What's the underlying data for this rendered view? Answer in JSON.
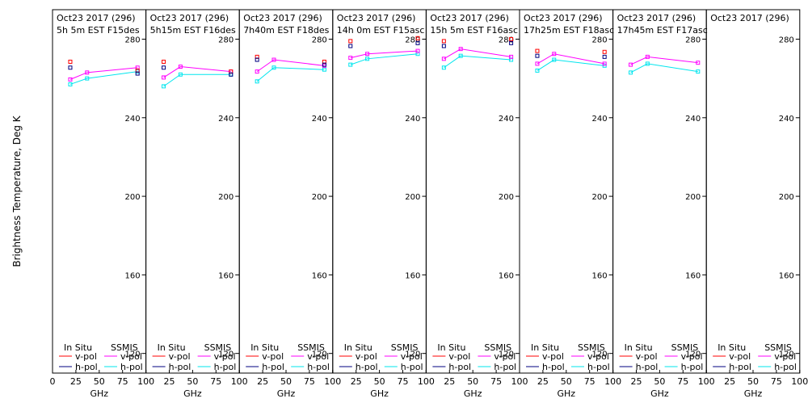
{
  "chart_data": {
    "type": "line",
    "ylabel": "Brightness Temperature, Deg K",
    "xlabel": "GHz",
    "xlim": [
      0,
      100
    ],
    "ylim": [
      110,
      295
    ],
    "x_ticks": [
      0,
      25,
      50,
      75,
      100
    ],
    "y_ticks": [
      120,
      160,
      200,
      240,
      280
    ],
    "legend": {
      "in_situ_title": "In Situ",
      "ssmis_title": "SSMIS",
      "vpol_label": "v-pol",
      "hpol_label": "h-pol",
      "in_situ_vpol_color": "#ff0000",
      "in_situ_hpol_color": "#000080",
      "ssmis_vpol_color": "#ff00ff",
      "ssmis_hpol_color": "#00e5ee"
    },
    "panels": [
      {
        "title1": "Oct23 2017 (296)",
        "title2": "5h 5m EST F15des",
        "ssmis_v": {
          "x": [
            19,
            37,
            91
          ],
          "y": [
            259.5,
            263,
            265.5
          ]
        },
        "ssmis_h": {
          "x": [
            19,
            37,
            91
          ],
          "y": [
            257,
            260,
            263.5
          ]
        },
        "insitu_v": {
          "x": [
            19,
            91
          ],
          "y": [
            268.5,
            264
          ]
        },
        "insitu_h": {
          "x": [
            19,
            91
          ],
          "y": [
            265.5,
            262.5
          ]
        }
      },
      {
        "title1": "Oct23 2017 (296)",
        "title2": "5h15m EST F16des",
        "ssmis_v": {
          "x": [
            19,
            37,
            91
          ],
          "y": [
            260.5,
            266,
            263.5
          ]
        },
        "ssmis_h": {
          "x": [
            19,
            37,
            91
          ],
          "y": [
            256,
            262,
            262
          ]
        },
        "insitu_v": {
          "x": [
            19,
            91
          ],
          "y": [
            268.5,
            263.5
          ]
        },
        "insitu_h": {
          "x": [
            19,
            91
          ],
          "y": [
            265.5,
            262
          ]
        }
      },
      {
        "title1": "Oct23 2017 (296)",
        "title2": "7h40m EST F18des",
        "ssmis_v": {
          "x": [
            19,
            37,
            91
          ],
          "y": [
            263.5,
            269.5,
            266.5
          ]
        },
        "ssmis_h": {
          "x": [
            19,
            37,
            91
          ],
          "y": [
            258.5,
            265.5,
            264.5
          ]
        },
        "insitu_v": {
          "x": [
            19,
            91
          ],
          "y": [
            271,
            268.5
          ]
        },
        "insitu_h": {
          "x": [
            19,
            91
          ],
          "y": [
            269.5,
            267
          ]
        }
      },
      {
        "title1": "Oct23 2017 (296)",
        "title2": "14h 0m EST F15asc",
        "ssmis_v": {
          "x": [
            19,
            37,
            91
          ],
          "y": [
            270.5,
            272.5,
            274
          ]
        },
        "ssmis_h": {
          "x": [
            19,
            37,
            91
          ],
          "y": [
            267,
            270,
            272.5
          ]
        },
        "insitu_v": {
          "x": [
            19,
            91
          ],
          "y": [
            279,
            280.5
          ]
        },
        "insitu_h": {
          "x": [
            19,
            91
          ],
          "y": [
            276.5,
            278
          ]
        }
      },
      {
        "title1": "Oct23 2017 (296)",
        "title2": "15h 5m EST F16asc",
        "ssmis_v": {
          "x": [
            19,
            37,
            91
          ],
          "y": [
            270,
            275,
            271
          ]
        },
        "ssmis_h": {
          "x": [
            19,
            37,
            91
          ],
          "y": [
            265.5,
            271.5,
            269.5
          ]
        },
        "insitu_v": {
          "x": [
            19,
            91
          ],
          "y": [
            279,
            280
          ]
        },
        "insitu_h": {
          "x": [
            19,
            91
          ],
          "y": [
            276.5,
            278
          ]
        }
      },
      {
        "title1": "Oct23 2017 (296)",
        "title2": "17h25m EST F18asc",
        "ssmis_v": {
          "x": [
            19,
            37,
            91
          ],
          "y": [
            267.5,
            272.5,
            267.5
          ]
        },
        "ssmis_h": {
          "x": [
            19,
            37,
            91
          ],
          "y": [
            264,
            269.5,
            266.5
          ]
        },
        "insitu_v": {
          "x": [
            19,
            91
          ],
          "y": [
            274,
            273.5
          ]
        },
        "insitu_h": {
          "x": [
            19,
            91
          ],
          "y": [
            271.5,
            271
          ]
        }
      },
      {
        "title1": "Oct23 2017 (296)",
        "title2": "17h45m EST F17asc",
        "ssmis_v": {
          "x": [
            19,
            37,
            91
          ],
          "y": [
            267,
            271,
            268
          ]
        },
        "ssmis_h": {
          "x": [
            19,
            37,
            91
          ],
          "y": [
            263,
            267.5,
            263.5
          ]
        },
        "insitu_v": {
          "x": [],
          "y": []
        },
        "insitu_h": {
          "x": [],
          "y": []
        }
      },
      {
        "title1": "Oct23 2017 (296)",
        "title2": "",
        "ssmis_v": {
          "x": [],
          "y": []
        },
        "ssmis_h": {
          "x": [],
          "y": []
        },
        "insitu_v": {
          "x": [],
          "y": []
        },
        "insitu_h": {
          "x": [],
          "y": []
        }
      }
    ]
  }
}
